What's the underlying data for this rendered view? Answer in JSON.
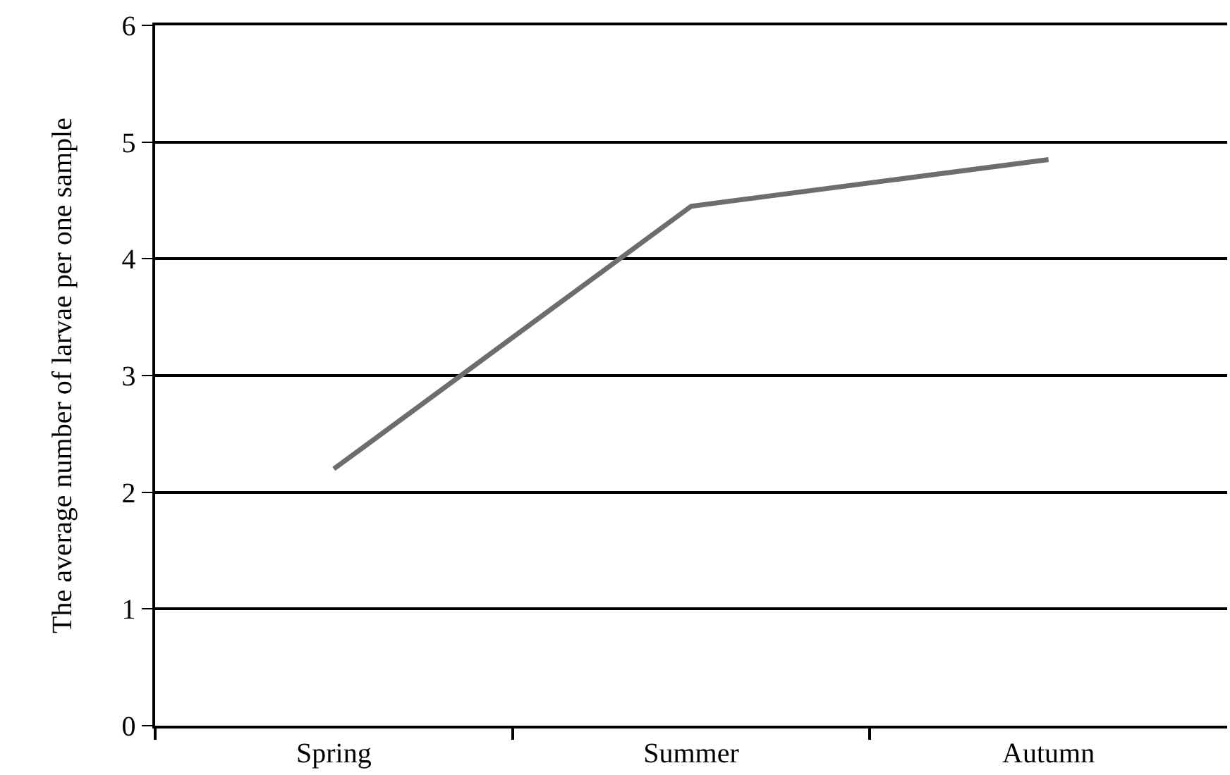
{
  "chart_data": {
    "type": "line",
    "ylabel": "The average number of larvae per one sample",
    "categories": [
      "Spring",
      "Summer",
      "Autumn"
    ],
    "series": [
      {
        "color": "#6d6d6d",
        "values": [
          2.2,
          4.45,
          4.85
        ]
      }
    ],
    "ylim": [
      0,
      6
    ],
    "yticks": [
      0,
      1,
      2,
      3,
      4,
      5,
      6
    ],
    "grid": "y",
    "marker": "none",
    "line_style": "solid"
  }
}
